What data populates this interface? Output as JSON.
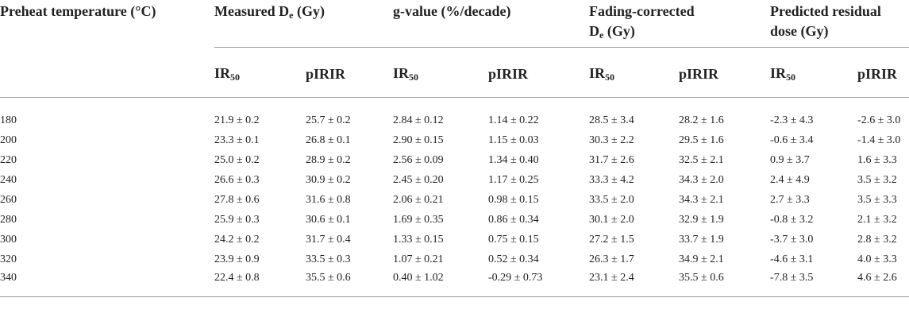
{
  "headers": {
    "preheat": "Preheat temperature (°C)",
    "measured_main": "Measured D",
    "measured_sub": "e",
    "measured_unit": " (Gy)",
    "gvalue": "g-value (%/decade)",
    "fading_line1": "Fading-corrected",
    "fading_main": "D",
    "fading_sub": "e",
    "fading_unit": " (Gy)",
    "residual_line1": "Predicted residual",
    "residual_line2": "dose (Gy)",
    "ir_main": "IR",
    "ir_sub": "50",
    "pirir": "pIRIR"
  },
  "rows": [
    [
      "180",
      "21.9 ± 0.2",
      "25.7 ± 0.2",
      "2.84 ± 0.12",
      "1.14 ± 0.22",
      "28.5 ± 3.4",
      "28.2 ± 1.6",
      "-2.3 ± 4.3",
      "-2.6 ± 3.0"
    ],
    [
      "200",
      "23.3 ± 0.1",
      "26.8 ± 0.1",
      "2.90 ± 0.15",
      "1.15 ± 0.03",
      "30.3 ± 2.2",
      "29.5 ± 1.6",
      "-0.6 ± 3.4",
      "-1.4 ± 3.0"
    ],
    [
      "220",
      "25.0 ± 0.2",
      "28.9 ± 0.2",
      "2.56 ± 0.09",
      "1.34 ± 0.40",
      "31.7 ± 2.6",
      "32.5 ± 2.1",
      "0.9 ± 3.7",
      "1.6 ± 3.3"
    ],
    [
      "240",
      "26.6 ± 0.3",
      "30.9 ± 0.2",
      "2.45 ± 0.20",
      "1.17 ± 0.25",
      "33.3 ± 4.2",
      "34.3 ± 2.0",
      "2.4 ± 4.9",
      "3.5 ± 3.2"
    ],
    [
      "260",
      "27.8 ± 0.6",
      "31.6 ± 0.8",
      "2.06 ± 0.21",
      "0.98 ± 0.15",
      "33.5 ± 2.0",
      "34.3 ± 2.1",
      "2.7 ± 3.3",
      "3.5 ± 3.3"
    ],
    [
      "280",
      "25.9 ± 0.3",
      "30.6 ± 0.1",
      "1.69 ± 0.35",
      "0.86 ± 0.34",
      "30.1 ± 2.0",
      "32.9 ± 1.9",
      "-0.8 ± 3.2",
      "2.1 ± 3.2"
    ],
    [
      "300",
      "24.2 ± 0.2",
      "31.7 ± 0.4",
      "1.33 ± 0.15",
      "0.75 ± 0.15",
      "27.2 ± 1.5",
      "33.7 ± 1.9",
      "-3.7 ± 3.0",
      "2.8 ± 3.2"
    ],
    [
      "320",
      "23.9 ± 0.9",
      "33.5 ± 0.3",
      "1.07 ± 0.21",
      "0.52 ± 0.34",
      "26.3 ± 1.7",
      "34.9 ± 2.1",
      "-4.6 ± 3.1",
      "4.0 ± 3.3"
    ],
    [
      "340",
      "22.4 ± 0.8",
      "35.5 ± 0.6",
      "0.40 ± 1.02",
      "-0.29 ± 0.73",
      "23.1 ± 2.4",
      "35.5 ± 0.6",
      "-7.8 ± 3.5",
      "4.6 ± 2.6"
    ]
  ]
}
